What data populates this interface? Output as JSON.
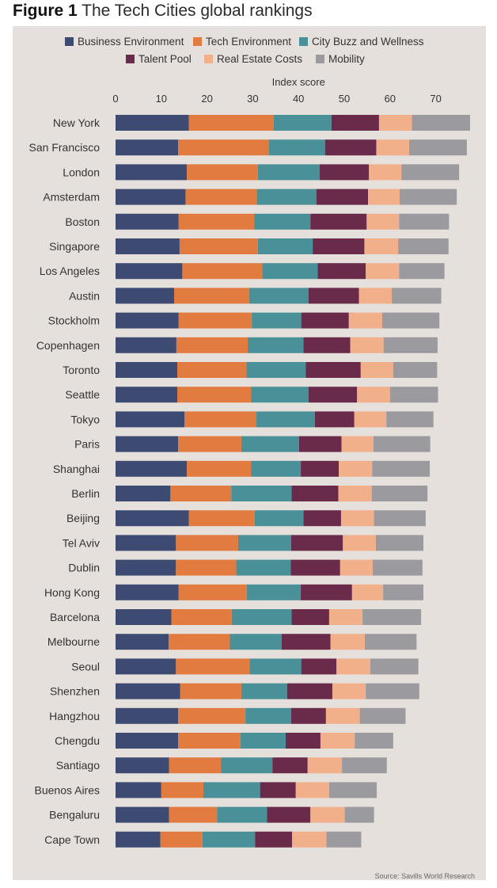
{
  "figure": {
    "label": "Figure 1",
    "title": "The Tech Cities global rankings"
  },
  "source_note": "Source: Savills World Research",
  "chart_data": {
    "type": "bar",
    "orientation": "horizontal",
    "stacked": true,
    "title": "The Tech Cities global rankings",
    "xlabel": "Index score",
    "ylabel": "",
    "xlim": [
      0,
      75
    ],
    "xticks": [
      0,
      10,
      20,
      30,
      40,
      50,
      60,
      70
    ],
    "grid": false,
    "legend_position": "top",
    "categories": [
      "New York",
      "San Francisco",
      "London",
      "Amsterdam",
      "Boston",
      "Singapore",
      "Los Angeles",
      "Austin",
      "Stockholm",
      "Copenhagen",
      "Toronto",
      "Seattle",
      "Tokyo",
      "Paris",
      "Shanghai",
      "Berlin",
      "Beijing",
      "Tel Aviv",
      "Dublin",
      "Hong Kong",
      "Barcelona",
      "Melbourne",
      "Seoul",
      "Shenzhen",
      "Hangzhou",
      "Chengdu",
      "Santiago",
      "Buenos Aires",
      "Bengaluru",
      "Cape Town"
    ],
    "series": [
      {
        "name": "Business Environment",
        "color": "#3d4a72",
        "values": [
          16,
          13.7,
          15.6,
          15.3,
          13.8,
          14,
          14.6,
          12.8,
          13.8,
          13.3,
          13.5,
          13.5,
          15.1,
          13.7,
          15.6,
          12,
          16,
          13.2,
          13.2,
          13.8,
          12.2,
          11.6,
          13.2,
          14.1,
          13.7,
          13.7,
          11.7,
          10,
          11.7,
          9.8
        ]
      },
      {
        "name": "Tech Environment",
        "color": "#e27b3f",
        "values": [
          18.6,
          19.8,
          15.5,
          15.6,
          16.5,
          17.1,
          17.5,
          16.4,
          16,
          15.6,
          15.1,
          16.1,
          15.7,
          13.8,
          14,
          13.3,
          14.4,
          13.6,
          13.2,
          14.9,
          13.2,
          13.4,
          16.1,
          13.4,
          14.7,
          13.6,
          11.4,
          9.2,
          10.5,
          9.2
        ]
      },
      {
        "name": "City Buzz and Wellness",
        "color": "#4a9098",
        "values": [
          12.6,
          12.3,
          13.5,
          13,
          12.3,
          12,
          12.1,
          13,
          10.8,
          12.2,
          13,
          12.6,
          12.8,
          12.6,
          10.9,
          13.2,
          10.7,
          11.6,
          11.9,
          11.8,
          13.1,
          11.3,
          11.3,
          10,
          10,
          9.9,
          11.2,
          12.4,
          10.9,
          11.5
        ]
      },
      {
        "name": "Talent Pool",
        "color": "#6a2a4a",
        "values": [
          10.4,
          11.2,
          10.8,
          11.3,
          12.3,
          11.3,
          10.5,
          11,
          10.4,
          10.2,
          12,
          10.6,
          8.6,
          9.3,
          8.3,
          10.2,
          8.2,
          11.3,
          10.8,
          11.2,
          8.2,
          10.7,
          7.7,
          9.9,
          7.6,
          7.6,
          7.7,
          7.8,
          9.5,
          8.1
        ]
      },
      {
        "name": "Real Estate Costs",
        "color": "#f2b08a",
        "values": [
          7.2,
          7.2,
          7.1,
          6.9,
          7.1,
          7.4,
          7.3,
          7.2,
          7.3,
          7.3,
          7.1,
          7.2,
          7,
          7,
          7.3,
          7.3,
          7.2,
          7.2,
          7.1,
          6.8,
          7.3,
          7.5,
          7.4,
          7.3,
          7.4,
          7.5,
          7.5,
          7.3,
          7.5,
          7.5
        ]
      },
      {
        "name": "Mobility",
        "color": "#9b9a9e",
        "values": [
          12.7,
          12.6,
          12.6,
          12.5,
          10.9,
          11,
          9.9,
          10.8,
          12.5,
          11.8,
          9.6,
          10.5,
          10.3,
          12.4,
          12.6,
          12.2,
          11.3,
          10.4,
          10.9,
          8.8,
          12.8,
          11.3,
          10.5,
          11.7,
          10,
          8.4,
          9.8,
          10.4,
          6.4,
          7.6
        ]
      }
    ]
  }
}
